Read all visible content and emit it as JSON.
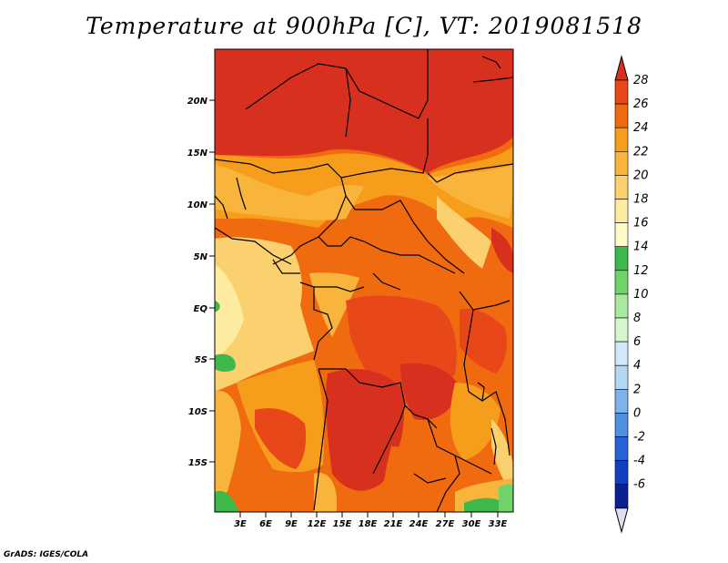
{
  "title": "Temperature at 900hPa [C], VT: 2019081518",
  "credit": "GrADS: IGES/COLA",
  "lat_labels": [
    "20N",
    "15N",
    "10N",
    "5N",
    "EQ",
    "5S",
    "10S",
    "15S"
  ],
  "lon_labels": [
    "3E",
    "6E",
    "9E",
    "12E",
    "15E",
    "18E",
    "21E",
    "24E",
    "27E",
    "30E",
    "33E"
  ],
  "colorbar": {
    "labels": [
      "28",
      "26",
      "24",
      "22",
      "20",
      "18",
      "16",
      "14",
      "12",
      "10",
      "8",
      "6",
      "4",
      "2",
      "0",
      "-2",
      "-4",
      "-6"
    ],
    "colors": [
      "#d7301f",
      "#e8471a",
      "#f06a10",
      "#f79d1c",
      "#f9b43c",
      "#fbd06f",
      "#fdeca0",
      "#fffac8",
      "#3db84a",
      "#6fd36a",
      "#a9e8a0",
      "#d8f5d0",
      "#d2e7f7",
      "#b3d6f2",
      "#7db2ea",
      "#4f8fe0",
      "#2563d6",
      "#1040c0",
      "#0a1f90",
      "#e3dcf0"
    ]
  },
  "regions": {
    "sahara": "#d7301f",
    "hot": "#e8471a",
    "warm": "#f06a10",
    "mid": "#f79d1c",
    "mild": "#f9b43c",
    "cool": "#fbd06f",
    "cooler": "#fdeca0",
    "cold": "#3db84a"
  }
}
